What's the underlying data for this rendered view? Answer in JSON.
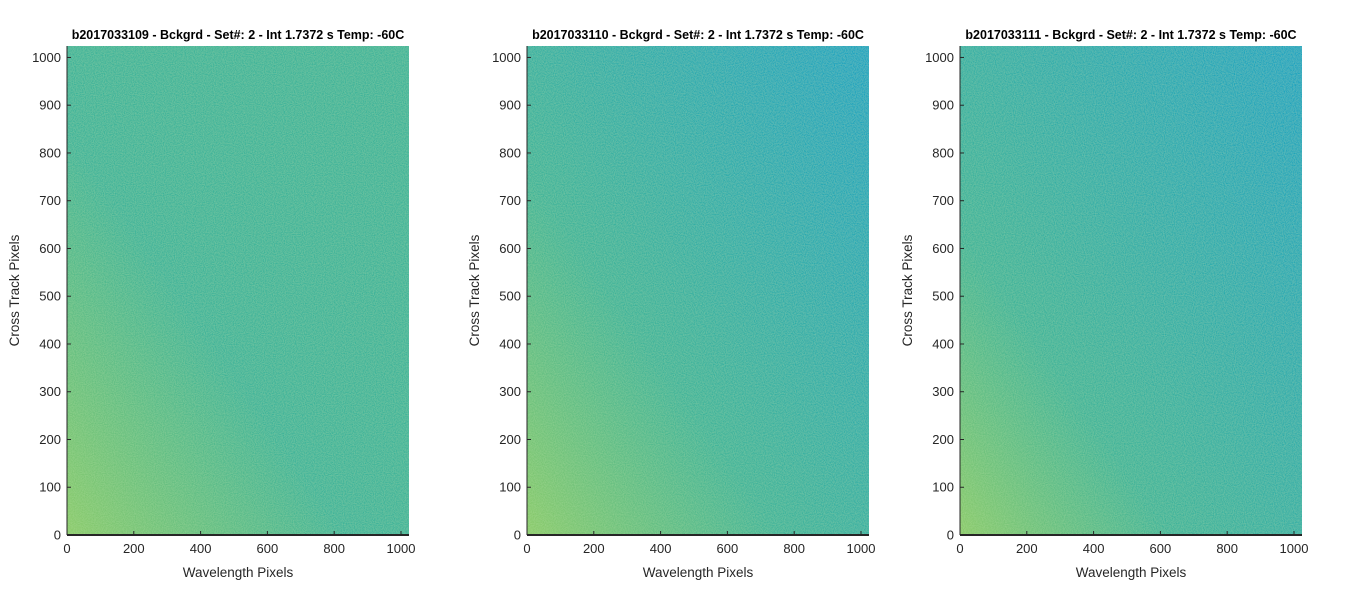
{
  "chart_data": [
    {
      "type": "heatmap",
      "title": "b2017033109 - Bckgrd - Set#: 2 - Int 1.7372 s Temp: -60C",
      "xlabel": "Wavelength Pixels",
      "ylabel": "Cross Track Pixels",
      "xlim": [
        0,
        1024
      ],
      "ylim": [
        0,
        1024
      ],
      "xticks": [
        0,
        200,
        400,
        600,
        800,
        1000
      ],
      "yticks": [
        0,
        100,
        200,
        300,
        400,
        500,
        600,
        700,
        800,
        900,
        1000
      ],
      "grid": false,
      "colormap": "parula",
      "colors": {
        "high": "#8ccb6a",
        "mid": "#3eb49a",
        "low": "#17a3c2"
      },
      "gradient_strength": 0.35
    },
    {
      "type": "heatmap",
      "title": "b2017033110 - Bckgrd - Set#: 2 - Int 1.7372 s Temp: -60C",
      "xlabel": "Wavelength Pixels",
      "ylabel": "Cross Track Pixels",
      "xlim": [
        0,
        1024
      ],
      "ylim": [
        0,
        1024
      ],
      "xticks": [
        0,
        200,
        400,
        600,
        800,
        1000
      ],
      "yticks": [
        0,
        100,
        200,
        300,
        400,
        500,
        600,
        700,
        800,
        900,
        1000
      ],
      "grid": false,
      "colormap": "parula",
      "colors": {
        "high": "#8ccb6a",
        "mid": "#3eb49a",
        "low": "#17a3c2"
      },
      "gradient_strength": 0.45
    },
    {
      "type": "heatmap",
      "title": "b2017033111 - Bckgrd - Set#: 2 - Int 1.7372 s Temp: -60C",
      "xlabel": "Wavelength Pixels",
      "ylabel": "Cross Track Pixels",
      "xlim": [
        0,
        1024
      ],
      "ylim": [
        0,
        1024
      ],
      "xticks": [
        0,
        200,
        400,
        600,
        800,
        1000
      ],
      "yticks": [
        0,
        100,
        200,
        300,
        400,
        500,
        600,
        700,
        800,
        900,
        1000
      ],
      "grid": false,
      "colormap": "parula",
      "colors": {
        "high": "#8ccb6a",
        "mid": "#3eb49a",
        "low": "#17a3c2"
      },
      "gradient_strength": 0.6
    }
  ]
}
